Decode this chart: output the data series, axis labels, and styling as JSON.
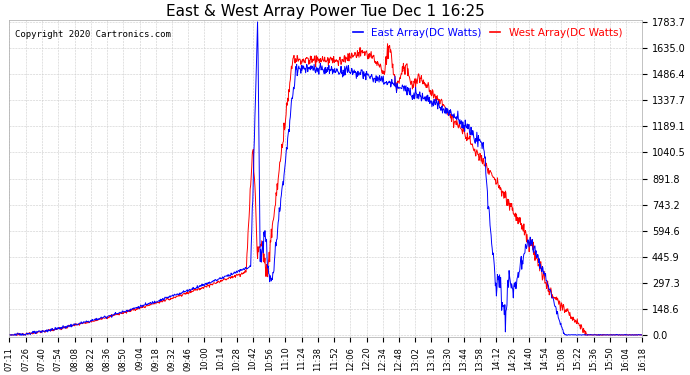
{
  "title": "East & West Array Power Tue Dec 1 16:25",
  "copyright": "Copyright 2020 Cartronics.com",
  "legend_east": "East Array(DC Watts)",
  "legend_west": "West Array(DC Watts)",
  "east_color": "#0000ff",
  "west_color": "#ff0000",
  "bg_color": "#ffffff",
  "grid_color": "#cccccc",
  "yticks": [
    0.0,
    148.6,
    297.3,
    445.9,
    594.6,
    743.2,
    891.8,
    1040.5,
    1189.1,
    1337.7,
    1486.4,
    1635.0,
    1783.7
  ],
  "ymax": 1783.7,
  "ymin": 0.0,
  "xtick_labels": [
    "07:11",
    "07:26",
    "07:40",
    "07:54",
    "08:08",
    "08:22",
    "08:36",
    "08:50",
    "09:04",
    "09:18",
    "09:32",
    "09:46",
    "10:00",
    "10:14",
    "10:28",
    "10:42",
    "10:56",
    "11:10",
    "11:24",
    "11:38",
    "11:52",
    "12:06",
    "12:20",
    "12:34",
    "12:48",
    "13:02",
    "13:16",
    "13:30",
    "13:44",
    "13:58",
    "14:12",
    "14:26",
    "14:40",
    "14:54",
    "15:08",
    "15:22",
    "15:36",
    "15:50",
    "16:04",
    "16:18"
  ]
}
